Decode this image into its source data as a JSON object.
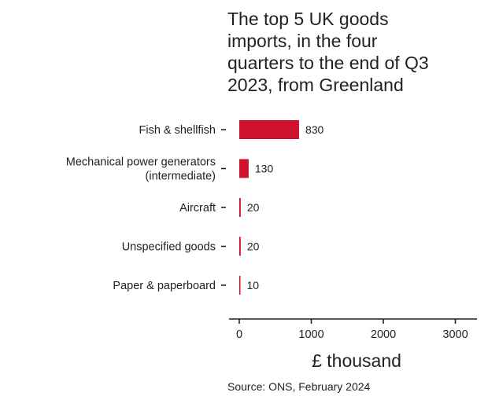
{
  "chart_data": {
    "type": "bar",
    "orientation": "horizontal",
    "title": "The top 5 UK goods\nimports, in the four\nquarters to the end of Q3\n2023, from Greenland",
    "categories": [
      [
        "Fish & shellfish"
      ],
      [
        "Mechanical power generators",
        "(intermediate)"
      ],
      [
        "Aircraft"
      ],
      [
        "Unspecified goods"
      ],
      [
        "Paper & paperboard"
      ]
    ],
    "values": [
      830,
      130,
      20,
      20,
      10
    ],
    "data_labels": [
      "830",
      "130",
      "20",
      "20",
      "10"
    ],
    "xlabel": "£ thousand",
    "xlim": [
      0,
      3300
    ],
    "xticks": [
      0,
      1000,
      2000,
      3000
    ],
    "xtick_labels": [
      "0",
      "1000",
      "2000",
      "3000"
    ],
    "bar_color": "#d0112b",
    "grid": false,
    "source": "Source: ONS, February 2024"
  }
}
